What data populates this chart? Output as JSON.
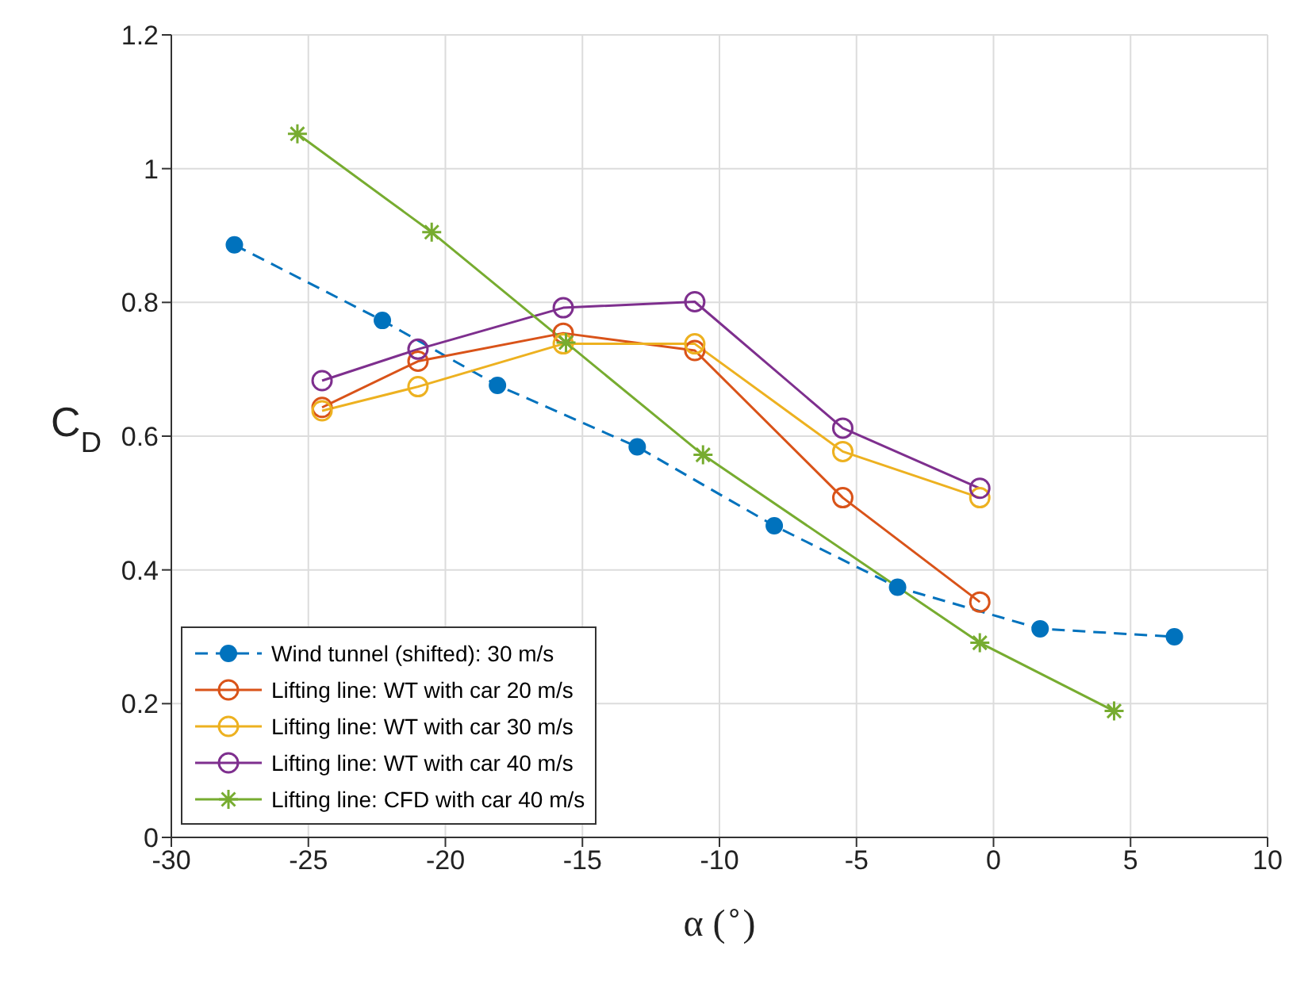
{
  "chart_data": {
    "type": "line",
    "xlabel": "α ($^{∘}$)",
    "ylabel": "C$_{D}$",
    "xlim": [
      -30,
      10
    ],
    "xticks": [
      -30,
      -25,
      -20,
      -15,
      -10,
      -5,
      0,
      5,
      10
    ],
    "ylim": [
      0,
      1.2
    ],
    "yticks": [
      0,
      0.2,
      0.4,
      0.6,
      0.8,
      1,
      1.2
    ],
    "grid": true,
    "legend": "bottom left",
    "series": [
      {
        "name": "Wind tunnel (shifted): 30 m/s",
        "color": "#0072bd",
        "line_style": "dashed",
        "marker": "circle",
        "x": [
          -27.7,
          -22.3,
          -18.1,
          -13.0,
          -8.0,
          -3.5,
          1.7,
          6.6
        ],
        "values": [
          0.886,
          0.773,
          0.676,
          0.584,
          0.466,
          0.374,
          0.312,
          0.3
        ]
      },
      {
        "name": "Lifting line: WT with car 20 m/s",
        "color": "#d95319",
        "line_style": "solid",
        "marker": "circle",
        "x": [
          -24.5,
          -21,
          -15.7,
          -10.9,
          -5.5,
          -0.5
        ],
        "values": [
          0.643,
          0.712,
          0.754,
          0.728,
          0.508,
          0.352
        ]
      },
      {
        "name": "Lifting line: WT with car 30 m/s",
        "color": "#edb120",
        "line_style": "solid",
        "marker": "circle",
        "x": [
          -24.5,
          -21,
          -15.7,
          -10.9,
          -5.5,
          -0.5
        ],
        "values": [
          0.638,
          0.674,
          0.738,
          0.738,
          0.577,
          0.508
        ]
      },
      {
        "name": "Lifting line: WT with car 40 m/s",
        "color": "#7e2f8e",
        "line_style": "solid",
        "marker": "circle",
        "x": [
          -24.5,
          -21,
          -15.7,
          -10.9,
          -5.5,
          -0.5
        ],
        "values": [
          0.683,
          0.73,
          0.792,
          0.801,
          0.612,
          0.522
        ]
      },
      {
        "name": "Lifting line: CFD with car 40 m/s",
        "color": "#77ac30",
        "line_style": "solid",
        "marker": "cross",
        "x": [
          -25.4,
          -20.5,
          -15.6,
          -10.6,
          -0.5,
          4.4
        ],
        "values": [
          1.052,
          0.905,
          0.74,
          0.572,
          0.291,
          0.189
        ]
      }
    ]
  }
}
